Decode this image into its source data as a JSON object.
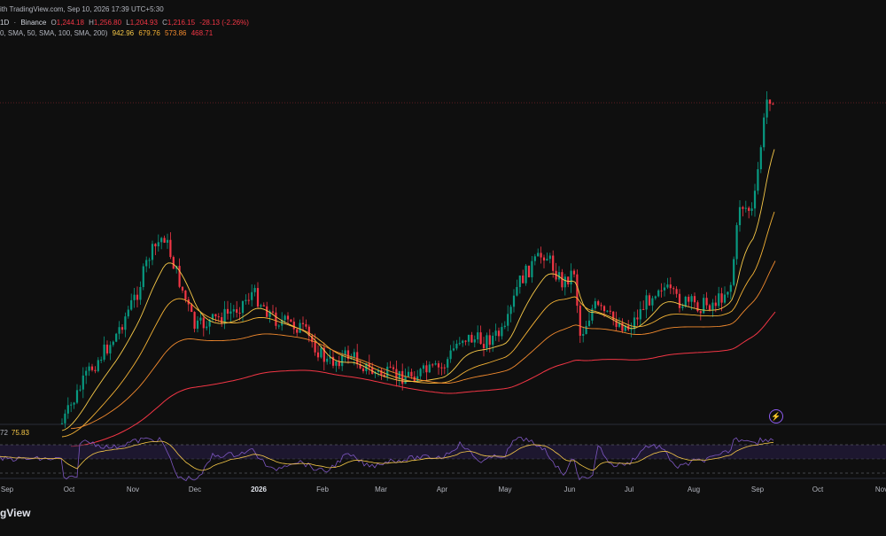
{
  "header": {
    "line1": "ith TradingView.com, Sep 10, 2026 17:39 UTC+5:30",
    "interval": "1D",
    "exchange": "Binance",
    "open_label": "O",
    "open": "1,244.18",
    "high_label": "H",
    "high": "1,256.80",
    "low_label": "L",
    "low": "1,204.93",
    "close_label": "C",
    "close": "1,216.15",
    "change": "-28.13 (-2.26%)",
    "ma_params": "0, SMA, 50, SMA, 100, SMA, 200)",
    "ma_values": [
      "942.96",
      "679.76",
      "573.86",
      "468.71"
    ]
  },
  "rsi": {
    "label": "72",
    "value": "75.83"
  },
  "x_axis_labels": [
    "Sep",
    "Oct",
    "Nov",
    "Dec",
    "2026",
    "Feb",
    "Mar",
    "Apr",
    "May",
    "Jun",
    "Jul",
    "Aug",
    "Sep",
    "Oct",
    "Nov"
  ],
  "brand": "gView",
  "colors": {
    "up": "#089981",
    "down": "#f23645",
    "ma_fast": "#f7c948",
    "ma_mid": "#f5b335",
    "ma_slow": "#f28a2e",
    "ma_long": "#f23645",
    "rsi_line": "#7e57c2",
    "rsi_ma": "#f7c948"
  },
  "icons": {
    "replay": "bolt-icon"
  }
}
